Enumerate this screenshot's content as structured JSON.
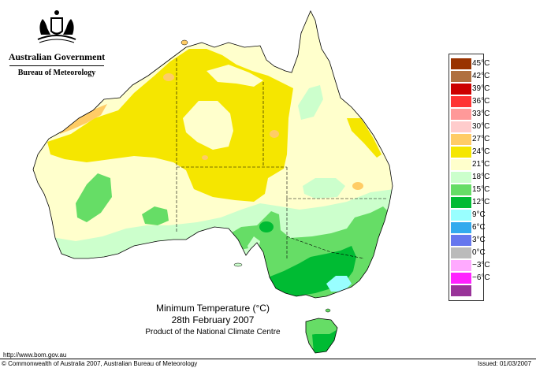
{
  "header": {
    "government": "Australian Government",
    "bureau": "Bureau of Meteorology"
  },
  "map": {
    "title_line1": "Minimum Temperature (°C)",
    "title_line2": "28th February 2007",
    "title_line3": "Product of the National Climate Centre"
  },
  "legend": {
    "items": [
      {
        "label": "45°C",
        "color": "#993300"
      },
      {
        "label": "42°C",
        "color": "#b07040"
      },
      {
        "label": "39°C",
        "color": "#cc0000"
      },
      {
        "label": "36°C",
        "color": "#ff3333"
      },
      {
        "label": "33°C",
        "color": "#ff9999"
      },
      {
        "label": "30°C",
        "color": "#ffcccc"
      },
      {
        "label": "27°C",
        "color": "#ffcc66"
      },
      {
        "label": "24°C",
        "color": "#f5e600"
      },
      {
        "label": "21°C",
        "color": "#ffffcc"
      },
      {
        "label": "18°C",
        "color": "#ccffcc"
      },
      {
        "label": "15°C",
        "color": "#66dd66"
      },
      {
        "label": "12°C",
        "color": "#00bb33"
      },
      {
        "label": "9°C",
        "color": "#99ffff"
      },
      {
        "label": "6°C",
        "color": "#33aaee"
      },
      {
        "label": "3°C",
        "color": "#6677ee"
      },
      {
        "label": "0°C",
        "color": "#bbbbbb"
      },
      {
        "label": "−3°C",
        "color": "#ffaaff"
      },
      {
        "label": "−6°C",
        "color": "#ff22ff"
      },
      {
        "label": "",
        "color": "#993399"
      }
    ]
  },
  "footer": {
    "url": "http://www.bom.gov.au",
    "copyright": "© Commonwealth of Australia 2007, Australian Bureau of Meteorology",
    "issued": "Issued: 01/03/2007"
  }
}
